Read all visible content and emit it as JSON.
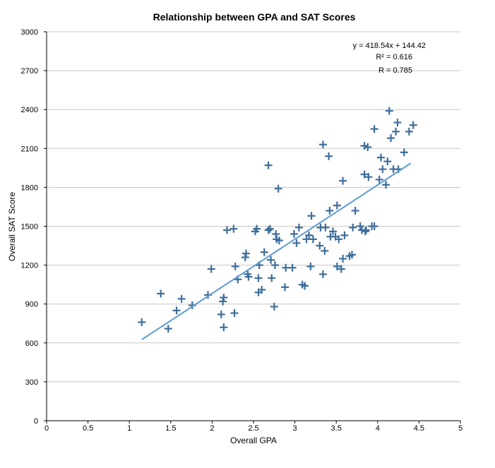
{
  "chart_data": {
    "type": "scatter",
    "title": "Relationship between GPA and SAT Scores",
    "xlabel": "Overall GPA",
    "ylabel": "Overall SAT Score",
    "xlim": [
      0,
      5
    ],
    "ylim": [
      0,
      3000
    ],
    "x_ticks": [
      "0",
      "0.5",
      "1",
      "1.5",
      "2",
      "2.5",
      "3",
      "3.5",
      "4",
      "4.5",
      "5"
    ],
    "y_ticks": [
      "0",
      "300",
      "600",
      "900",
      "1200",
      "1500",
      "1800",
      "2100",
      "2400",
      "2700",
      "3000"
    ],
    "grid": "horizontal",
    "marker_color": "#3f6e9a",
    "trend_color": "#5b9bd5",
    "trendline": {
      "slope": 418.54,
      "intercept": 144.42,
      "x_range": [
        1.15,
        4.4
      ],
      "equation": "y = 418.54x + 144.42",
      "r_squared": "R² = 0.616",
      "r": "R = 0.785"
    },
    "points": [
      [
        1.15,
        760
      ],
      [
        1.38,
        980
      ],
      [
        1.47,
        710
      ],
      [
        1.57,
        850
      ],
      [
        1.63,
        940
      ],
      [
        1.76,
        890
      ],
      [
        1.95,
        970
      ],
      [
        1.99,
        1170
      ],
      [
        2.11,
        820
      ],
      [
        2.13,
        920
      ],
      [
        2.14,
        950
      ],
      [
        2.14,
        720
      ],
      [
        2.18,
        1470
      ],
      [
        2.26,
        1480
      ],
      [
        2.27,
        830
      ],
      [
        2.28,
        1190
      ],
      [
        2.31,
        1090
      ],
      [
        2.4,
        1260
      ],
      [
        2.41,
        1290
      ],
      [
        2.43,
        1130
      ],
      [
        2.44,
        1110
      ],
      [
        2.52,
        1460
      ],
      [
        2.54,
        1480
      ],
      [
        2.56,
        1100
      ],
      [
        2.56,
        990
      ],
      [
        2.57,
        1200
      ],
      [
        2.6,
        1010
      ],
      [
        2.63,
        1300
      ],
      [
        2.68,
        1970
      ],
      [
        2.68,
        1470
      ],
      [
        2.7,
        1480
      ],
      [
        2.71,
        1240
      ],
      [
        2.72,
        1100
      ],
      [
        2.75,
        880
      ],
      [
        2.76,
        1200
      ],
      [
        2.77,
        1440
      ],
      [
        2.78,
        1400
      ],
      [
        2.8,
        1790
      ],
      [
        2.81,
        1390
      ],
      [
        2.88,
        1030
      ],
      [
        2.89,
        1180
      ],
      [
        2.97,
        1180
      ],
      [
        2.99,
        1440
      ],
      [
        3.02,
        1370
      ],
      [
        3.05,
        1490
      ],
      [
        3.09,
        1050
      ],
      [
        3.12,
        1040
      ],
      [
        3.14,
        1400
      ],
      [
        3.17,
        1430
      ],
      [
        3.19,
        1190
      ],
      [
        3.2,
        1580
      ],
      [
        3.22,
        1400
      ],
      [
        3.3,
        1350
      ],
      [
        3.31,
        1490
      ],
      [
        3.34,
        2130
      ],
      [
        3.34,
        1130
      ],
      [
        3.36,
        1310
      ],
      [
        3.37,
        1490
      ],
      [
        3.41,
        2040
      ],
      [
        3.42,
        1620
      ],
      [
        3.43,
        1420
      ],
      [
        3.46,
        1460
      ],
      [
        3.49,
        1420
      ],
      [
        3.51,
        1190
      ],
      [
        3.51,
        1660
      ],
      [
        3.53,
        1400
      ],
      [
        3.56,
        1170
      ],
      [
        3.58,
        1850
      ],
      [
        3.58,
        1250
      ],
      [
        3.6,
        1430
      ],
      [
        3.66,
        1270
      ],
      [
        3.69,
        1280
      ],
      [
        3.7,
        1490
      ],
      [
        3.73,
        1620
      ],
      [
        3.79,
        1500
      ],
      [
        3.81,
        1470
      ],
      [
        3.84,
        2120
      ],
      [
        3.84,
        1900
      ],
      [
        3.85,
        1460
      ],
      [
        3.86,
        1470
      ],
      [
        3.88,
        2110
      ],
      [
        3.89,
        1880
      ],
      [
        3.93,
        1500
      ],
      [
        3.96,
        1500
      ],
      [
        3.96,
        2250
      ],
      [
        4.02,
        1860
      ],
      [
        4.04,
        2030
      ],
      [
        4.06,
        1940
      ],
      [
        4.1,
        1820
      ],
      [
        4.12,
        2000
      ],
      [
        4.14,
        2390
      ],
      [
        4.16,
        2180
      ],
      [
        4.19,
        1940
      ],
      [
        4.22,
        2230
      ],
      [
        4.24,
        2300
      ],
      [
        4.25,
        1940
      ],
      [
        4.32,
        2070
      ],
      [
        4.38,
        2230
      ],
      [
        4.43,
        2280
      ]
    ]
  }
}
